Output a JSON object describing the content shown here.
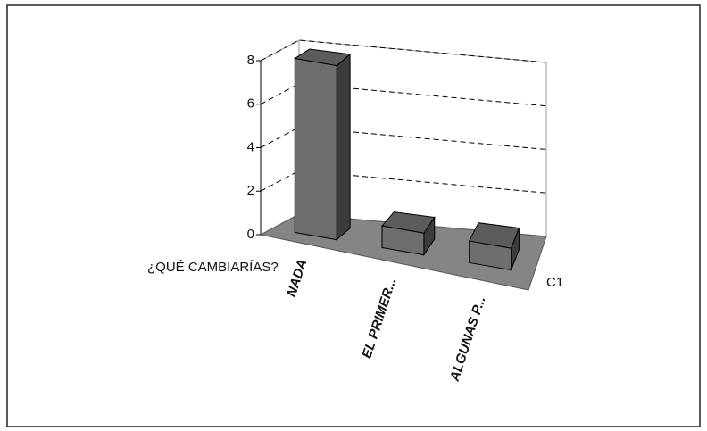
{
  "chart_data": {
    "type": "bar3d",
    "xlabel": "¿QUÉ CAMBIARÍAS?",
    "categories": [
      "NADA",
      "EL PRIMER...",
      "ALGUNAS P..."
    ],
    "series": [
      {
        "name": "C1",
        "color": "#6e6e6e",
        "values": [
          8,
          1,
          1
        ]
      }
    ],
    "ylim": [
      0,
      8
    ],
    "yticks": [
      0,
      2,
      4,
      6,
      8
    ],
    "grid": true
  }
}
